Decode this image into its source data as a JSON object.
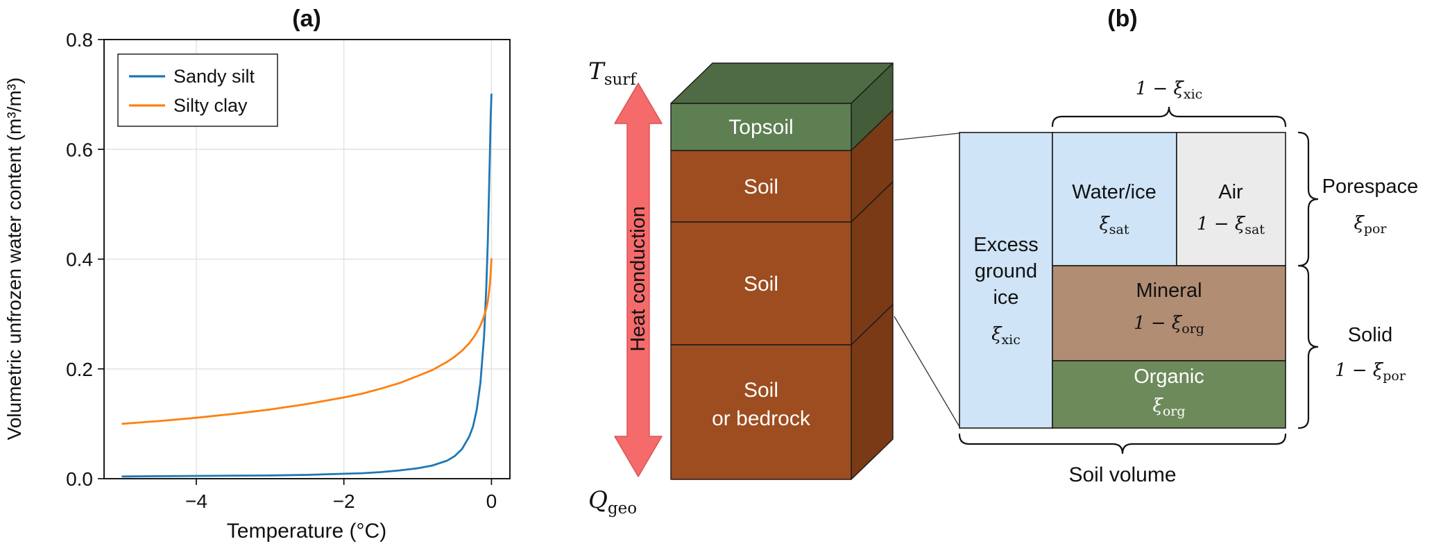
{
  "chart_data": {
    "type": "line",
    "title": "(a)",
    "xlabel": "Temperature (°C)",
    "ylabel": "Volumetric unfrozen water content (m³/m³)",
    "xlim": [
      -5.25,
      0.25
    ],
    "ylim": [
      0,
      0.8
    ],
    "xticks": [
      -4,
      -2,
      0
    ],
    "xtick_labels": [
      "−4",
      "−2",
      "0"
    ],
    "yticks": [
      0,
      0.2,
      0.4,
      0.6,
      0.8
    ],
    "ytick_labels": [
      "0.0",
      "0.2",
      "0.4",
      "0.6",
      "0.8"
    ],
    "grid": true,
    "legend_position": "upper left",
    "series": [
      {
        "name": "Sandy silt",
        "color": "#1f77b4",
        "x": [
          -5,
          -4.5,
          -4,
          -3.5,
          -3,
          -2.5,
          -2,
          -1.75,
          -1.5,
          -1.25,
          -1,
          -0.8,
          -0.6,
          -0.5,
          -0.4,
          -0.3,
          -0.25,
          -0.2,
          -0.15,
          -0.1,
          -0.07,
          -0.05,
          -0.03,
          -0.02,
          -0.01,
          0
        ],
        "y": [
          0.004,
          0.0045,
          0.005,
          0.0055,
          0.006,
          0.007,
          0.009,
          0.01,
          0.012,
          0.015,
          0.019,
          0.024,
          0.033,
          0.041,
          0.054,
          0.077,
          0.095,
          0.125,
          0.175,
          0.26,
          0.35,
          0.43,
          0.54,
          0.6,
          0.66,
          0.7
        ]
      },
      {
        "name": "Silty clay",
        "color": "#ff7f0e",
        "x": [
          -5,
          -4.5,
          -4,
          -3.5,
          -3,
          -2.5,
          -2,
          -1.75,
          -1.5,
          -1.25,
          -1,
          -0.8,
          -0.6,
          -0.5,
          -0.4,
          -0.3,
          -0.25,
          -0.2,
          -0.15,
          -0.1,
          -0.07,
          -0.05,
          -0.03,
          -0.02,
          -0.01,
          0
        ],
        "y": [
          0.1,
          0.105,
          0.111,
          0.118,
          0.126,
          0.136,
          0.148,
          0.155,
          0.164,
          0.174,
          0.187,
          0.198,
          0.213,
          0.222,
          0.233,
          0.247,
          0.256,
          0.266,
          0.279,
          0.296,
          0.31,
          0.323,
          0.343,
          0.357,
          0.376,
          0.4
        ]
      }
    ]
  },
  "panel_b": {
    "title": "(b)",
    "column": {
      "surface_label": {
        "main": "T",
        "sub": "surf"
      },
      "geo_label": {
        "main": "Q",
        "sub": "geo"
      },
      "heat_arrow_label": "Heat conduction",
      "layers": {
        "topsoil": "Topsoil",
        "soil_upper": "Soil",
        "soil_mid": "Soil",
        "soil_deep_line1": "Soil",
        "soil_deep_line2": "or bedrock"
      }
    },
    "composition": {
      "excess_ice": {
        "line1": "Excess",
        "line2": "ground",
        "line3": "ice",
        "frac_prefix": "ξ",
        "frac_sub": "xic"
      },
      "water_ice": {
        "label": "Water/ice",
        "frac_prefix": "ξ",
        "frac_sub": "sat"
      },
      "air": {
        "label": "Air",
        "frac_prefix": "1 − ξ",
        "frac_sub": "sat"
      },
      "mineral": {
        "label": "Mineral",
        "frac_prefix": "1 − ξ",
        "frac_sub": "org"
      },
      "organic": {
        "label": "Organic",
        "frac_prefix": "ξ",
        "frac_sub": "org"
      },
      "top_brace": {
        "prefix": "1 − ξ",
        "sub": "xic"
      },
      "porespace": {
        "label": "Porespace",
        "frac_prefix": "ξ",
        "frac_sub": "por"
      },
      "solid": {
        "label": "Solid",
        "frac_prefix": "1 − ξ",
        "frac_sub": "por"
      },
      "soil_volume": "Soil volume"
    },
    "colors": {
      "topsoil_front": "#5d7f52",
      "topsoil_top": "#4f6b45",
      "topsoil_side": "#435c39",
      "soil_front": "#9d4d20",
      "soil_side": "#7a3a16",
      "arrow_fill": "#f56b6b",
      "arrow_stroke": "#d95555",
      "ice_blue": "#cfe4f6",
      "air_gray": "#ebebeb",
      "mineral_brown": "#b08d73",
      "organic_green": "#6d8a5b"
    }
  }
}
